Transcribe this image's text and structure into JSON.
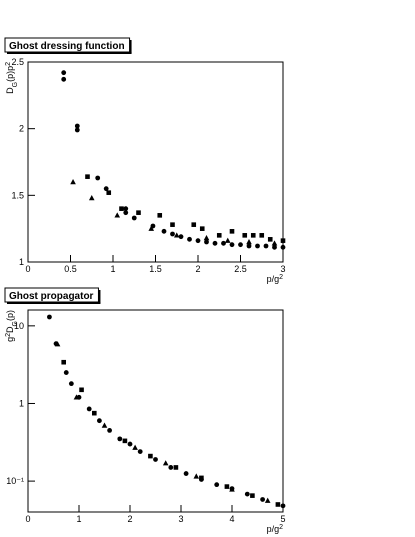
{
  "chart_data": [
    {
      "type": "scatter",
      "title": "Ghost dressing function",
      "xlabel": [
        "p/g",
        "2"
      ],
      "ylabel": [
        "D",
        "G",
        "(p)p",
        "2"
      ],
      "xlim": [
        0,
        3
      ],
      "ylim": [
        1,
        2.5
      ],
      "xticks": [
        0,
        0.5,
        1,
        1.5,
        2,
        2.5,
        3
      ],
      "yticks": [
        1,
        1.5,
        2,
        2.5
      ],
      "log_y": false,
      "series": [
        {
          "marker": "circle",
          "color": "#000000",
          "x": [
            0.42,
            0.42,
            0.58,
            0.58,
            0.82,
            0.92,
            1.15,
            1.15,
            1.25,
            1.47,
            1.6,
            1.7,
            1.8,
            1.9,
            2.0,
            2.1,
            2.2,
            2.3,
            2.4,
            2.5,
            2.6,
            2.7,
            2.8,
            2.9,
            3.0
          ],
          "values": [
            2.42,
            2.37,
            2.02,
            1.99,
            1.63,
            1.55,
            1.4,
            1.37,
            1.33,
            1.27,
            1.23,
            1.21,
            1.19,
            1.17,
            1.16,
            1.15,
            1.14,
            1.14,
            1.13,
            1.13,
            1.12,
            1.12,
            1.12,
            1.11,
            1.11
          ]
        },
        {
          "marker": "square",
          "color": "#000000",
          "x": [
            0.7,
            0.95,
            1.1,
            1.3,
            1.55,
            1.7,
            1.95,
            2.05,
            2.25,
            2.4,
            2.55,
            2.65,
            2.75,
            2.85,
            3.0
          ],
          "values": [
            1.64,
            1.52,
            1.4,
            1.37,
            1.35,
            1.28,
            1.28,
            1.25,
            1.2,
            1.23,
            1.2,
            1.2,
            1.2,
            1.17,
            1.16
          ]
        },
        {
          "marker": "triangle",
          "color": "#000000",
          "x": [
            0.53,
            0.75,
            1.05,
            1.45,
            1.75,
            2.1,
            2.35,
            2.6,
            2.9
          ],
          "values": [
            1.6,
            1.48,
            1.35,
            1.25,
            1.2,
            1.18,
            1.16,
            1.15,
            1.14
          ]
        }
      ]
    },
    {
      "type": "scatter",
      "title": "Ghost propagator",
      "xlabel": [
        "p/g",
        "2"
      ],
      "ylabel": [
        "g",
        "2",
        "D",
        "G",
        "(p)"
      ],
      "xlim": [
        0,
        5
      ],
      "ylim": [
        0.04,
        16
      ],
      "xticks": [
        0,
        1,
        2,
        3,
        4,
        5
      ],
      "yticks": [
        {
          "value": 0.1,
          "label": "10⁻¹"
        },
        1,
        10
      ],
      "log_y": true,
      "series": [
        {
          "marker": "circle",
          "color": "#000000",
          "x": [
            0.42,
            0.55,
            0.75,
            0.85,
            1.0,
            1.2,
            1.4,
            1.6,
            1.8,
            2.0,
            2.2,
            2.5,
            2.8,
            3.1,
            3.4,
            3.7,
            4.0,
            4.3,
            4.6,
            5.0
          ],
          "values": [
            13,
            5.9,
            2.5,
            1.8,
            1.2,
            0.85,
            0.6,
            0.45,
            0.35,
            0.3,
            0.24,
            0.19,
            0.15,
            0.125,
            0.105,
            0.09,
            0.08,
            0.068,
            0.058,
            0.048
          ]
        },
        {
          "marker": "square",
          "color": "#000000",
          "x": [
            0.7,
            1.05,
            1.3,
            1.9,
            2.4,
            2.9,
            3.4,
            3.9,
            4.4,
            4.9
          ],
          "values": [
            3.4,
            1.5,
            0.75,
            0.33,
            0.21,
            0.15,
            0.11,
            0.085,
            0.065,
            0.05
          ]
        },
        {
          "marker": "triangle",
          "color": "#000000",
          "x": [
            0.58,
            0.95,
            1.5,
            2.1,
            2.7,
            3.3,
            4.0,
            4.7
          ],
          "values": [
            5.8,
            1.2,
            0.52,
            0.27,
            0.17,
            0.115,
            0.078,
            0.056
          ]
        }
      ]
    }
  ]
}
